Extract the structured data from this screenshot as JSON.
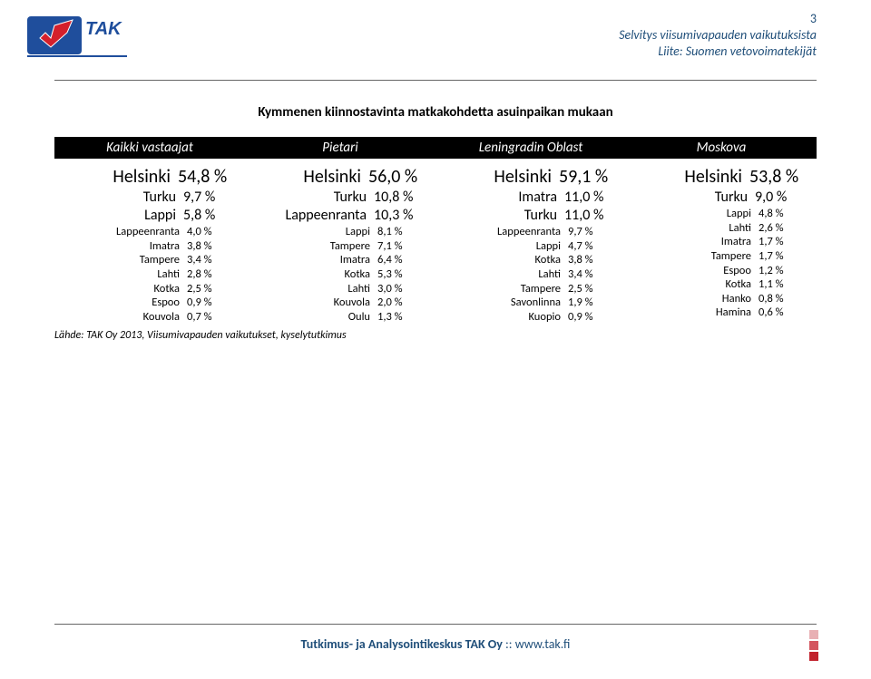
{
  "page_number": "3",
  "header_lines": [
    "Selvitys viisumivapauden vaikutuksista",
    "Liite: Suomen vetovoimatekijät"
  ],
  "title": "Kymmenen kiinnostavinta matkakohdetta asuinpaikan mukaan",
  "column_headers": [
    "Kaikki vastaajat",
    "Pietari",
    "Leningradin Oblast",
    "Moskova"
  ],
  "columns": [
    [
      {
        "city": "Helsinki",
        "val": "54,8 %",
        "cls": "big"
      },
      {
        "city": "Turku",
        "val": "9,7 %",
        "cls": "med"
      },
      {
        "city": "Lappi",
        "val": "5,8 %",
        "cls": "med"
      },
      {
        "city": "Lappeenranta",
        "val": "4,0 %",
        "cls": "sm"
      },
      {
        "city": "Imatra",
        "val": "3,8 %",
        "cls": "sm"
      },
      {
        "city": "Tampere",
        "val": "3,4 %",
        "cls": "sm"
      },
      {
        "city": "Lahti",
        "val": "2,8 %",
        "cls": "sm"
      },
      {
        "city": "Kotka",
        "val": "2,5 %",
        "cls": "sm"
      },
      {
        "city": "Espoo",
        "val": "0,9 %",
        "cls": "sm"
      },
      {
        "city": "Kouvola",
        "val": "0,7 %",
        "cls": "sm"
      }
    ],
    [
      {
        "city": "Helsinki",
        "val": "56,0 %",
        "cls": "big"
      },
      {
        "city": "Turku",
        "val": "10,8 %",
        "cls": "med"
      },
      {
        "city": "Lappeenranta",
        "val": "10,3 %",
        "cls": "med"
      },
      {
        "city": "Lappi",
        "val": "8,1 %",
        "cls": "sm"
      },
      {
        "city": "Tampere",
        "val": "7,1 %",
        "cls": "sm"
      },
      {
        "city": "Imatra",
        "val": "6,4 %",
        "cls": "sm"
      },
      {
        "city": "Kotka",
        "val": "5,3 %",
        "cls": "sm"
      },
      {
        "city": "Lahti",
        "val": "3,0 %",
        "cls": "sm"
      },
      {
        "city": "Kouvola",
        "val": "2,0 %",
        "cls": "sm"
      },
      {
        "city": "Oulu",
        "val": "1,3 %",
        "cls": "sm"
      }
    ],
    [
      {
        "city": "Helsinki",
        "val": "59,1 %",
        "cls": "big"
      },
      {
        "city": "Imatra",
        "val": "11,0 %",
        "cls": "med"
      },
      {
        "city": "Turku",
        "val": "11,0 %",
        "cls": "med"
      },
      {
        "city": "Lappeenranta",
        "val": "9,7 %",
        "cls": "sm"
      },
      {
        "city": "Lappi",
        "val": "4,7 %",
        "cls": "sm"
      },
      {
        "city": "Kotka",
        "val": "3,8 %",
        "cls": "sm"
      },
      {
        "city": "Lahti",
        "val": "3,4 %",
        "cls": "sm"
      },
      {
        "city": "Tampere",
        "val": "2,5 %",
        "cls": "sm"
      },
      {
        "city": "Savonlinna",
        "val": "1,9 %",
        "cls": "sm"
      },
      {
        "city": "Kuopio",
        "val": "0,9 %",
        "cls": "sm"
      }
    ],
    [
      {
        "city": "Helsinki",
        "val": "53,8 %",
        "cls": "big"
      },
      {
        "city": "Turku",
        "val": "9,0 %",
        "cls": "med"
      },
      {
        "city": "Lappi",
        "val": "4,8 %",
        "cls": "sm"
      },
      {
        "city": "Lahti",
        "val": "2,6 %",
        "cls": "sm"
      },
      {
        "city": "Imatra",
        "val": "1,7 %",
        "cls": "sm"
      },
      {
        "city": "Tampere",
        "val": "1,7 %",
        "cls": "sm"
      },
      {
        "city": "Espoo",
        "val": "1,2 %",
        "cls": "sm"
      },
      {
        "city": "Kotka",
        "val": "1,1 %",
        "cls": "sm"
      },
      {
        "city": "Hanko",
        "val": "0,8 %",
        "cls": "sm"
      },
      {
        "city": "Hamina",
        "val": "0,6 %",
        "cls": "sm"
      }
    ]
  ],
  "source": "Lähde: TAK Oy 2013, Viisumivapauden vaikutukset, kyselytutkimus",
  "footer_bold": "Tutkimus- ja Analysointikeskus TAK Oy",
  "footer_sep": "   ::   ",
  "footer_link": "www.tak.fi",
  "logo": {
    "bg": "#ffffff",
    "blue": "#1f4e9c",
    "red": "#d4202c",
    "text_color": "#1f4e9c"
  },
  "square_colors": [
    "#e8b0b4",
    "#d4555f",
    "#c1222d"
  ],
  "header_color": "#1f4e79",
  "rule_color": "#666666"
}
